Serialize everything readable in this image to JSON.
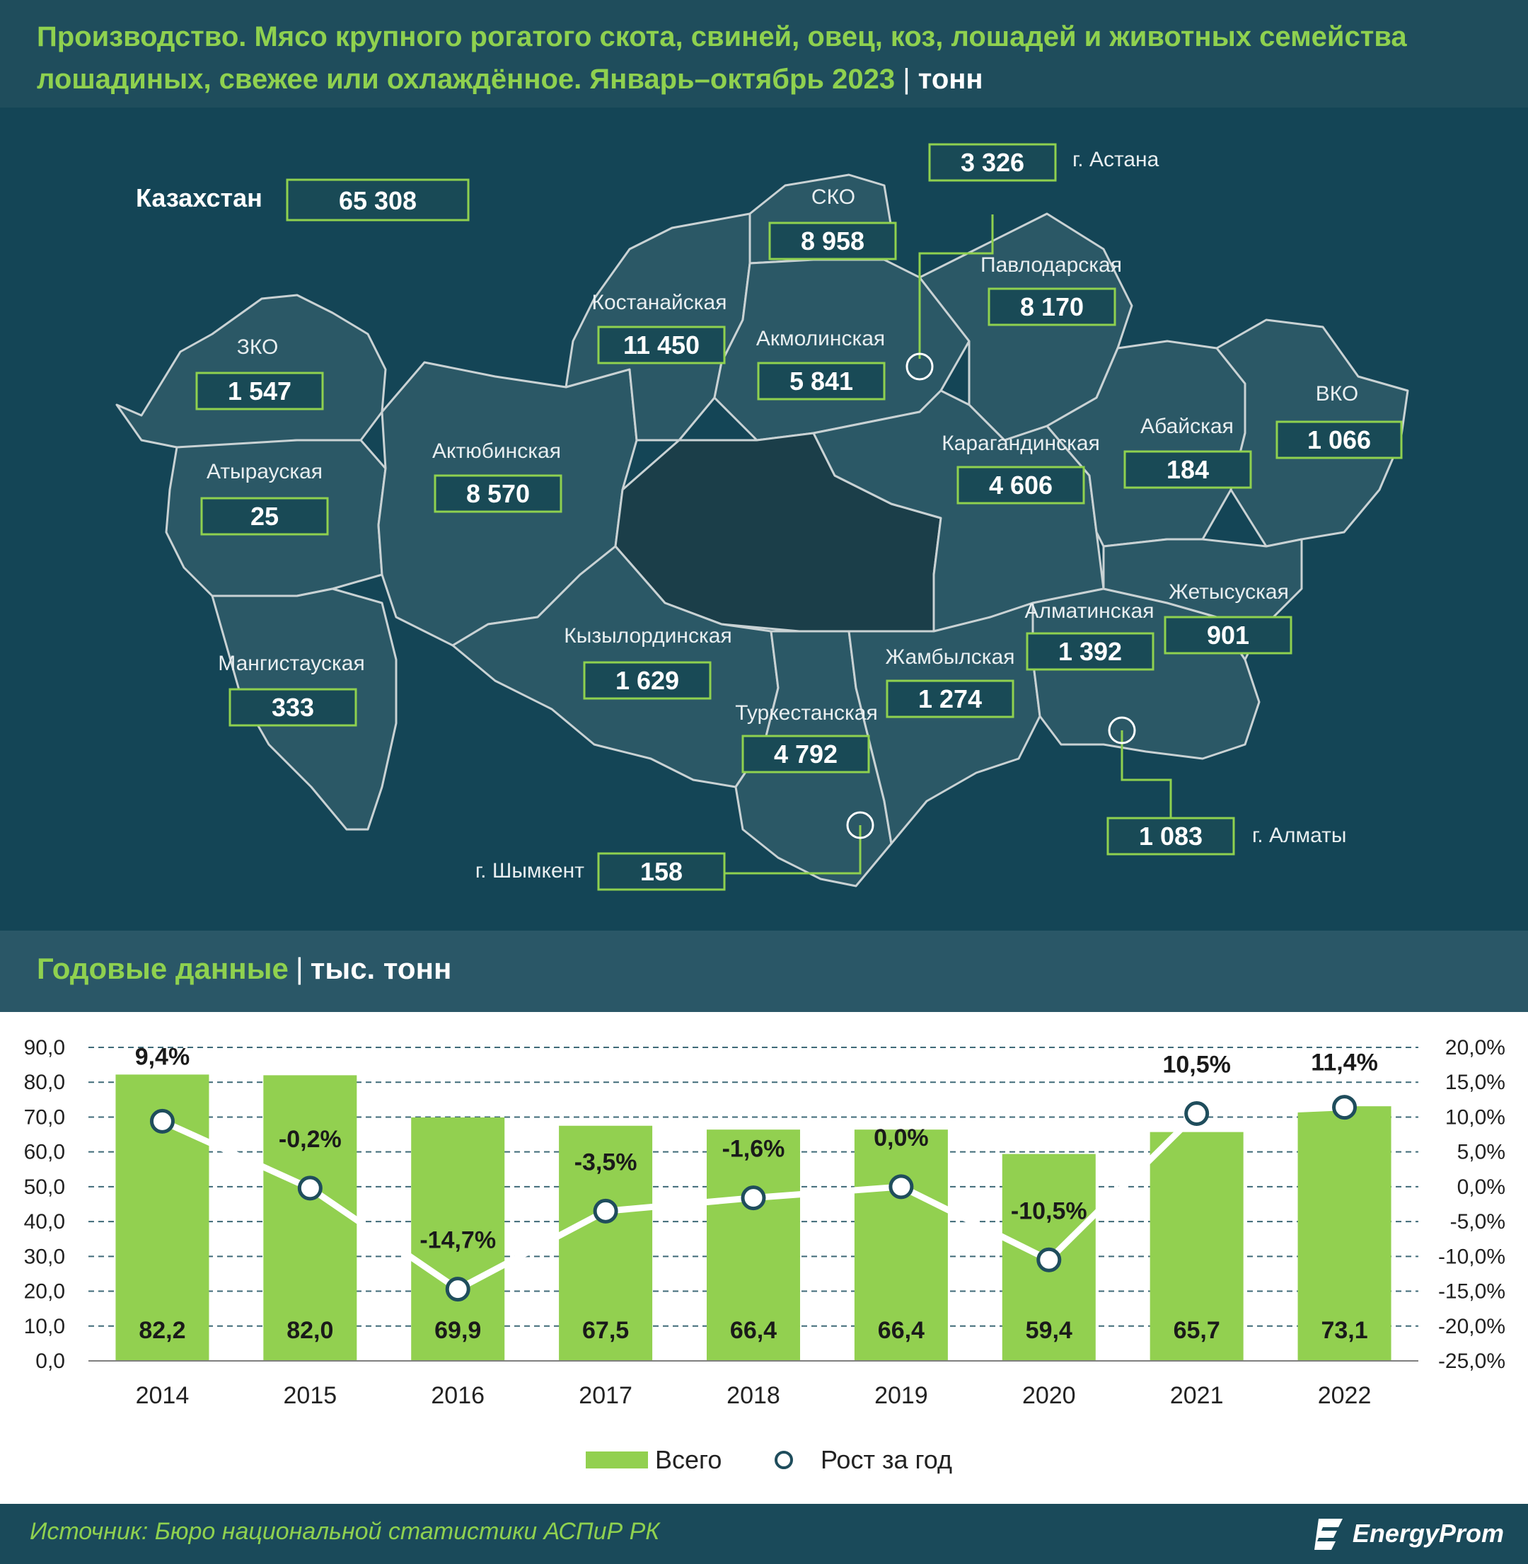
{
  "header": {
    "title": "Производство. Мясо крупного рогатого скота, свиней, овец, коз, лошадей и животных семейства лошадиных, свежее или охлаждённое. Январь–октябрь 2023",
    "separator": "|",
    "unit": "тонн"
  },
  "map": {
    "total_label": "Казахстан",
    "total_value": "65 308",
    "regions": [
      {
        "name": "ЗКО",
        "value": "1 547"
      },
      {
        "name": "Атырауская",
        "value": "25"
      },
      {
        "name": "Мангистауская",
        "value": "333"
      },
      {
        "name": "Актюбинская",
        "value": "8 570"
      },
      {
        "name": "Костанайская",
        "value": "11 450"
      },
      {
        "name": "СКО",
        "value": "8 958"
      },
      {
        "name": "Акмолинская",
        "value": "5 841"
      },
      {
        "name": "г. Астана",
        "value": "3 326"
      },
      {
        "name": "Павлодарская",
        "value": "8 170"
      },
      {
        "name": "Карагандинская",
        "value": "4 606"
      },
      {
        "name": "Абайская",
        "value": "184"
      },
      {
        "name": "ВКО",
        "value": "1 066"
      },
      {
        "name": "Кызылординская",
        "value": "1 629"
      },
      {
        "name": "Туркестанская",
        "value": "4 792"
      },
      {
        "name": "Жамбылская",
        "value": "1 274"
      },
      {
        "name": "Алматинская",
        "value": "1 392"
      },
      {
        "name": "Жетысуская",
        "value": "901"
      },
      {
        "name": "г. Алматы",
        "value": "1 083"
      },
      {
        "name": "г. Шымкент",
        "value": "158"
      }
    ]
  },
  "annual": {
    "title": "Годовые данные",
    "separator": "|",
    "unit": "тыс. тонн"
  },
  "chart_data": {
    "type": "bar",
    "categories": [
      "2014",
      "2015",
      "2016",
      "2017",
      "2018",
      "2019",
      "2020",
      "2021",
      "2022"
    ],
    "series": [
      {
        "name": "Всего",
        "type": "bar",
        "axis": "left",
        "values": [
          82.2,
          82.0,
          69.9,
          67.5,
          66.4,
          66.4,
          59.4,
          65.7,
          73.1
        ],
        "labels": [
          "82,2",
          "82,0",
          "69,9",
          "67,5",
          "66,4",
          "66,4",
          "59,4",
          "65,7",
          "73,1"
        ],
        "color": "#92d050"
      },
      {
        "name": "Рост за год",
        "type": "line",
        "axis": "right",
        "values": [
          9.4,
          -0.2,
          -14.7,
          -3.5,
          -1.6,
          0.0,
          -10.5,
          10.5,
          11.4
        ],
        "labels": [
          "9,4%",
          "-0,2%",
          "-14,7%",
          "-3,5%",
          "-1,6%",
          "0,0%",
          "-10,5%",
          "10,5%",
          "11,4%"
        ],
        "color": "#ffffff"
      }
    ],
    "ylim": [
      0,
      90
    ],
    "y_ticks": [
      "0,0",
      "10,0",
      "20,0",
      "30,0",
      "40,0",
      "50,0",
      "60,0",
      "70,0",
      "80,0",
      "90,0"
    ],
    "y2lim": [
      -25,
      20
    ],
    "y2_ticks": [
      "-25,0%",
      "-20,0%",
      "-15,0%",
      "-10,0%",
      "-5,0%",
      "0,0%",
      "5,0%",
      "10,0%",
      "15,0%",
      "20,0%"
    ],
    "grid": true,
    "legend": "bottom",
    "title": "",
    "xlabel": "",
    "ylabel": ""
  },
  "footer": {
    "source": "Источник: Бюро национальной статистики АСПиР РК",
    "logo": "EnergyProm"
  }
}
